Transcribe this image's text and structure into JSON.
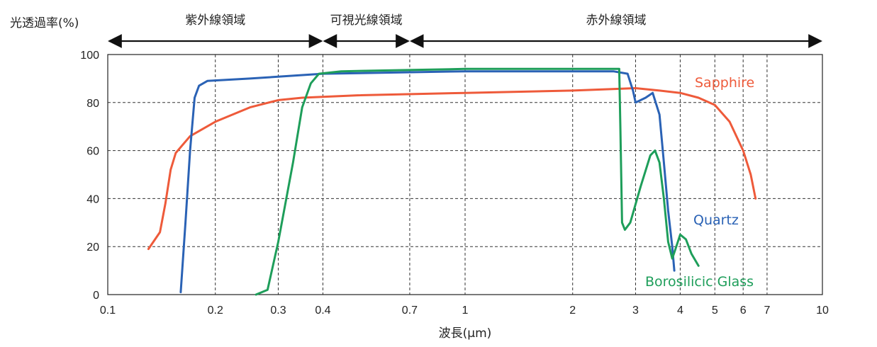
{
  "chart_data": {
    "type": "line",
    "ylabel": "光透過率(%)",
    "xlabel": "波長(μm)",
    "x_scale": "log",
    "xlim": [
      0.1,
      10
    ],
    "ylim": [
      0,
      100
    ],
    "x_ticks": [
      0.1,
      0.2,
      0.3,
      0.4,
      0.7,
      1,
      2,
      3,
      4,
      5,
      6,
      7,
      10
    ],
    "x_tick_labels": [
      "0.1",
      "0.2",
      "0.3",
      "0.4",
      "0.7",
      "1",
      "2",
      "3",
      "4",
      "5",
      "6",
      "7",
      "10"
    ],
    "y_ticks": [
      0,
      20,
      40,
      60,
      80,
      100
    ],
    "y_tick_labels": [
      "0",
      "20",
      "40",
      "60",
      "80",
      "100"
    ],
    "grid": true,
    "regions": [
      {
        "label": "紫外線領域",
        "from": 0.1,
        "to": 0.4
      },
      {
        "label": "可視光線領域",
        "from": 0.4,
        "to": 0.7
      },
      {
        "label": "赤外線領域",
        "from": 0.7,
        "to": 10
      }
    ],
    "series": [
      {
        "name": "Sapphire",
        "color": "#ee5a3a",
        "points": [
          [
            0.13,
            19
          ],
          [
            0.14,
            26
          ],
          [
            0.145,
            38
          ],
          [
            0.15,
            52
          ],
          [
            0.155,
            59
          ],
          [
            0.17,
            66
          ],
          [
            0.2,
            72
          ],
          [
            0.25,
            78
          ],
          [
            0.3,
            81
          ],
          [
            0.35,
            82
          ],
          [
            0.5,
            83
          ],
          [
            1,
            84
          ],
          [
            2,
            85
          ],
          [
            3,
            86
          ],
          [
            3.5,
            85
          ],
          [
            4,
            84
          ],
          [
            4.5,
            82
          ],
          [
            5,
            79
          ],
          [
            5.5,
            72
          ],
          [
            6,
            60
          ],
          [
            6.3,
            50
          ],
          [
            6.5,
            40
          ]
        ]
      },
      {
        "name": "Quartz",
        "color": "#2a62b5",
        "points": [
          [
            0.16,
            1
          ],
          [
            0.165,
            30
          ],
          [
            0.17,
            60
          ],
          [
            0.175,
            82
          ],
          [
            0.18,
            87
          ],
          [
            0.19,
            89
          ],
          [
            0.25,
            90
          ],
          [
            0.4,
            92
          ],
          [
            1,
            93
          ],
          [
            2,
            93
          ],
          [
            2.6,
            93
          ],
          [
            2.85,
            92
          ],
          [
            2.95,
            85
          ],
          [
            3.0,
            80
          ],
          [
            3.2,
            82
          ],
          [
            3.35,
            84
          ],
          [
            3.5,
            75
          ],
          [
            3.6,
            55
          ],
          [
            3.7,
            35
          ],
          [
            3.8,
            20
          ],
          [
            3.85,
            10
          ]
        ]
      },
      {
        "name": "Borosilicic Glass",
        "color": "#1e9e5a",
        "points": [
          [
            0.26,
            0
          ],
          [
            0.28,
            2
          ],
          [
            0.3,
            22
          ],
          [
            0.33,
            55
          ],
          [
            0.35,
            78
          ],
          [
            0.37,
            88
          ],
          [
            0.39,
            92
          ],
          [
            0.45,
            93
          ],
          [
            1,
            94
          ],
          [
            2,
            94
          ],
          [
            2.7,
            94
          ],
          [
            2.72,
            70
          ],
          [
            2.75,
            30
          ],
          [
            2.8,
            27
          ],
          [
            2.9,
            30
          ],
          [
            3.1,
            45
          ],
          [
            3.3,
            58
          ],
          [
            3.4,
            60
          ],
          [
            3.5,
            55
          ],
          [
            3.6,
            40
          ],
          [
            3.7,
            22
          ],
          [
            3.8,
            15
          ],
          [
            3.9,
            20
          ],
          [
            4.0,
            25
          ],
          [
            4.15,
            23
          ],
          [
            4.3,
            17
          ],
          [
            4.5,
            12
          ]
        ]
      }
    ]
  }
}
